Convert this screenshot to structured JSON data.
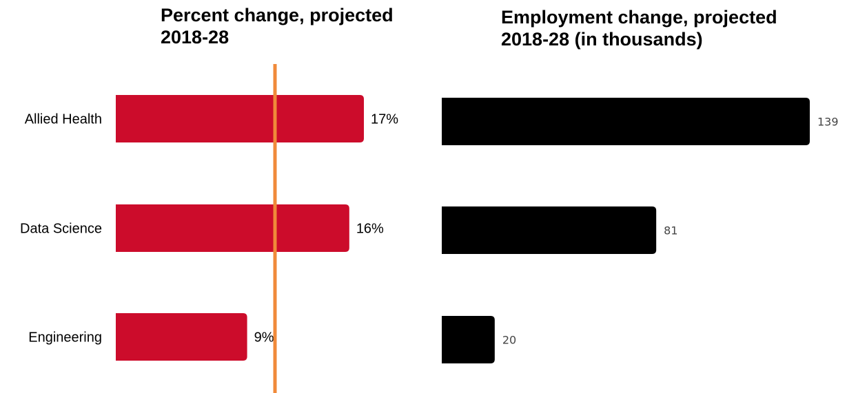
{
  "chart_data": [
    {
      "type": "bar",
      "orientation": "horizontal",
      "title": "Percent change, projected 2018-28",
      "categories": [
        "Allied Health",
        "Data Science",
        "Engineering"
      ],
      "values": [
        17,
        16,
        9
      ],
      "value_labels": [
        "17%",
        "16%",
        "9%"
      ],
      "unit": "%",
      "reference_line": {
        "color": "#F08A3A"
      },
      "bar_color": "#CC0C2B",
      "grid": false,
      "xlim": [
        0,
        17
      ]
    },
    {
      "type": "bar",
      "orientation": "horizontal",
      "title": "Employment change, projected 2018-28 (in thousands)",
      "categories": [
        "Allied Health",
        "Data Science",
        "Engineering"
      ],
      "values": [
        139,
        81,
        20
      ],
      "value_labels": [
        "139",
        "81",
        "20"
      ],
      "bar_color": "#000000",
      "grid": false,
      "xlim": [
        0,
        139
      ]
    }
  ]
}
